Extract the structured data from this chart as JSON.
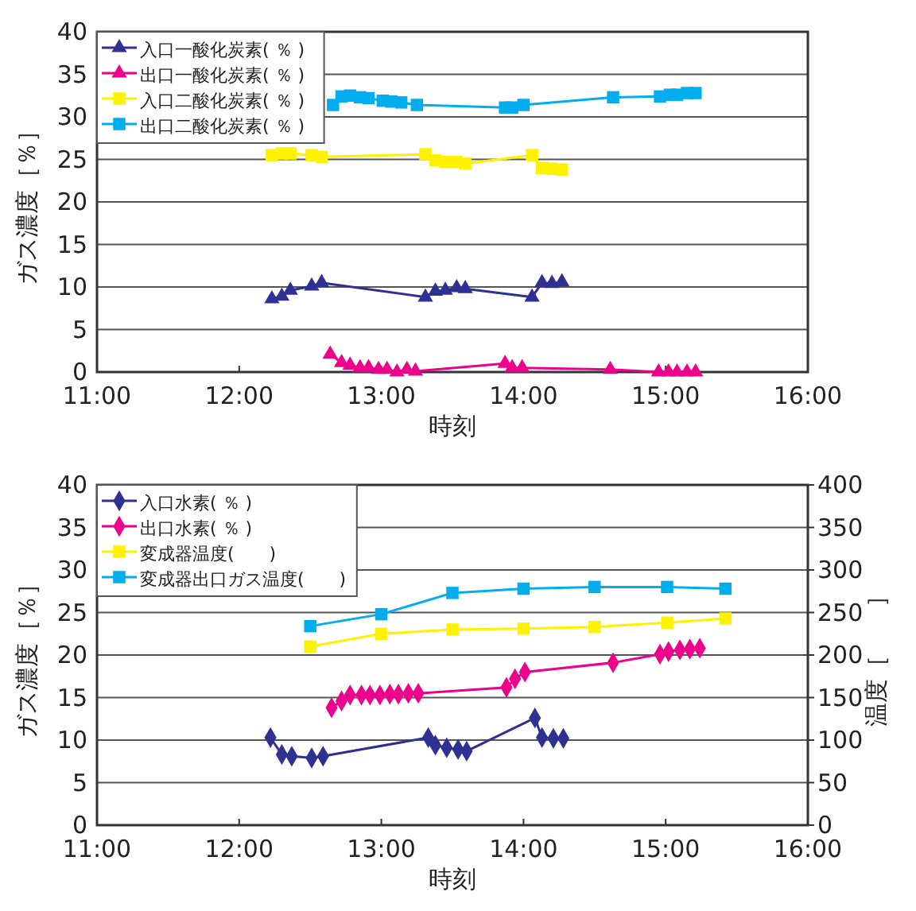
{
  "chart_data": [
    {
      "type": "line",
      "xlabel": "時刻",
      "ylabel": "ガス濃度［％］",
      "xlim": [
        11,
        16
      ],
      "xticks": [
        {
          "value": 11,
          "label": "11:00"
        },
        {
          "value": 12,
          "label": "12:00"
        },
        {
          "value": 13,
          "label": "13:00"
        },
        {
          "value": 14,
          "label": "14:00"
        },
        {
          "value": 15,
          "label": "15:00"
        },
        {
          "value": 16,
          "label": "16:00"
        }
      ],
      "ylim": [
        0,
        40
      ],
      "yticks": [
        0,
        5,
        10,
        15,
        20,
        25,
        30,
        35,
        40
      ],
      "grid": "y",
      "legend": "top left",
      "series": [
        {
          "name": "入口一酸化炭素( ％ )",
          "color": "#2e3192",
          "marker": "triangle",
          "x": [
            12.23,
            12.3,
            12.36,
            12.51,
            12.58,
            13.31,
            13.38,
            13.45,
            13.53,
            13.59,
            14.06,
            14.13,
            14.2,
            14.27
          ],
          "values": [
            8.6,
            8.9,
            9.6,
            10.1,
            10.5,
            8.8,
            9.5,
            9.6,
            9.9,
            9.8,
            8.8,
            10.5,
            10.4,
            10.6
          ]
        },
        {
          "name": "出口一酸化炭素( ％ )",
          "color": "#ec008c",
          "marker": "triangle",
          "x": [
            12.64,
            12.72,
            12.78,
            12.85,
            12.91,
            12.98,
            13.04,
            13.11,
            13.18,
            13.24,
            13.87,
            13.92,
            13.99,
            14.61,
            14.95,
            15.02,
            15.08,
            15.15,
            15.21
          ],
          "values": [
            2.1,
            1.1,
            0.8,
            0.5,
            0.5,
            0.3,
            0.3,
            0,
            0.3,
            0.1,
            1,
            0.5,
            0.5,
            0.3,
            0,
            0,
            0,
            0,
            0
          ]
        },
        {
          "name": "入口二酸化炭素( ％ )",
          "color": "#fff200",
          "marker": "square",
          "x": [
            12.23,
            12.3,
            12.36,
            12.51,
            12.58,
            13.31,
            13.38,
            13.45,
            13.53,
            13.59,
            14.06,
            14.13,
            14.2,
            14.27
          ],
          "values": [
            25.5,
            25.7,
            25.7,
            25.5,
            25.3,
            25.6,
            24.9,
            24.7,
            24.7,
            24.5,
            25.5,
            24,
            23.9,
            23.8
          ]
        },
        {
          "name": "出口二酸化炭素( ％ )",
          "color": "#00aeef",
          "marker": "square",
          "x": [
            12.66,
            12.72,
            12.78,
            12.85,
            12.91,
            13.01,
            13.07,
            13.14,
            13.25,
            13.87,
            13.92,
            14,
            14.63,
            14.96,
            15.03,
            15.08,
            15.15,
            15.21
          ],
          "values": [
            31.4,
            32.4,
            32.5,
            32.3,
            32.2,
            31.9,
            31.8,
            31.7,
            31.4,
            31.1,
            31.1,
            31.4,
            32.3,
            32.4,
            32.6,
            32.6,
            32.8,
            32.8
          ]
        }
      ]
    },
    {
      "type": "line",
      "xlabel": "時刻",
      "ylabel": "ガス濃度［％］",
      "y2label": "温度［　　］",
      "xlim": [
        11,
        16
      ],
      "xticks": [
        {
          "value": 11,
          "label": "11:00"
        },
        {
          "value": 12,
          "label": "12:00"
        },
        {
          "value": 13,
          "label": "13:00"
        },
        {
          "value": 14,
          "label": "14:00"
        },
        {
          "value": 15,
          "label": "15:00"
        },
        {
          "value": 16,
          "label": "16:00"
        }
      ],
      "ylim": [
        0,
        40
      ],
      "yticks": [
        0,
        5,
        10,
        15,
        20,
        25,
        30,
        35,
        40
      ],
      "y2lim": [
        0,
        400
      ],
      "y2ticks": [
        0,
        50,
        100,
        150,
        200,
        250,
        300,
        350,
        400
      ],
      "grid": "y",
      "legend": "top left",
      "series": [
        {
          "name": "入口水素( ％ )",
          "color": "#2e3192",
          "marker": "diamond",
          "x": [
            12.22,
            12.3,
            12.37,
            12.51,
            12.59,
            13.33,
            13.38,
            13.46,
            13.54,
            13.6,
            14.08,
            14.13,
            14.21,
            14.28
          ],
          "values": [
            10.3,
            8.3,
            8.1,
            7.9,
            8.1,
            10.3,
            9.4,
            9.1,
            8.9,
            8.7,
            12.6,
            10.3,
            10.2,
            10.2
          ]
        },
        {
          "name": "出口水素( ％ )",
          "color": "#ec008c",
          "marker": "diamond",
          "x": [
            12.65,
            12.72,
            12.78,
            12.86,
            12.92,
            12.99,
            13.06,
            13.12,
            13.19,
            13.26,
            13.88,
            13.94,
            14.01,
            14.63,
            14.96,
            15.02,
            15.1,
            15.17,
            15.24
          ],
          "values": [
            13.8,
            14.6,
            15.3,
            15.3,
            15.3,
            15.3,
            15.4,
            15.4,
            15.5,
            15.5,
            16.2,
            17.2,
            18,
            19.1,
            20.1,
            20.4,
            20.6,
            20.7,
            20.8
          ]
        },
        {
          "name": "変成器温度(　　)",
          "color": "#fff200",
          "marker": "square",
          "axis": "y2",
          "x": [
            12.5,
            13,
            13.5,
            14,
            14.5,
            15.01,
            15.42
          ],
          "values": [
            210,
            225,
            230,
            231,
            233,
            238,
            243
          ]
        },
        {
          "name": "変成器出口ガス温度(　　)",
          "color": "#00aeef",
          "marker": "square",
          "axis": "y2",
          "x": [
            12.5,
            13,
            13.5,
            14,
            14.5,
            15.01,
            15.42
          ],
          "values": [
            234,
            248,
            273,
            278,
            280,
            280,
            278
          ]
        }
      ]
    }
  ]
}
